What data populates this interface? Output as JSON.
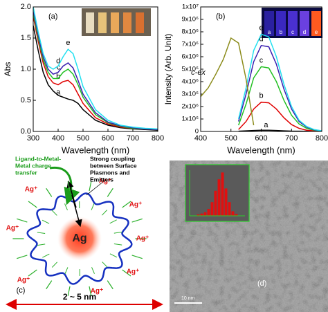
{
  "chart_data": [
    {
      "type": "line",
      "panel_label": "(a)",
      "xlabel": "Wavelength (nm)",
      "ylabel": "Abs",
      "x": [
        300,
        320,
        340,
        360,
        380,
        400,
        420,
        440,
        460,
        480,
        500,
        550,
        600,
        650,
        700,
        750,
        800
      ],
      "xlim": [
        300,
        800
      ],
      "xticks": [
        300,
        400,
        500,
        600,
        700,
        800
      ],
      "ylim": [
        0,
        2
      ],
      "yticks": [
        {
          "value": 0,
          "label": "0.0"
        },
        0.5,
        {
          "value": 1,
          "label": "1.0"
        },
        1.5,
        {
          "value": 2,
          "label": "2.0"
        }
      ],
      "series": [
        {
          "name": "a",
          "color": "#000000",
          "values": [
            1.7,
            1.3,
            0.95,
            0.75,
            0.65,
            0.58,
            0.55,
            0.52,
            0.5,
            0.45,
            0.35,
            0.18,
            0.1,
            0.06,
            0.04,
            0.03,
            0.02
          ]
        },
        {
          "name": "b",
          "color": "#e00000",
          "values": [
            1.85,
            1.45,
            1.1,
            0.88,
            0.78,
            0.75,
            0.8,
            0.82,
            0.75,
            0.6,
            0.45,
            0.22,
            0.12,
            0.07,
            0.05,
            0.04,
            0.03
          ]
        },
        {
          "name": "c",
          "color": "#22c022",
          "values": [
            1.9,
            1.5,
            1.15,
            0.95,
            0.85,
            0.85,
            0.95,
            1.0,
            0.92,
            0.75,
            0.55,
            0.27,
            0.14,
            0.08,
            0.05,
            0.04,
            0.03
          ]
        },
        {
          "name": "d",
          "color": "#3a1fb0",
          "values": [
            1.95,
            1.55,
            1.2,
            1.0,
            0.92,
            0.95,
            1.05,
            1.1,
            1.02,
            0.82,
            0.6,
            0.3,
            0.15,
            0.09,
            0.06,
            0.04,
            0.03
          ]
        },
        {
          "name": "e",
          "color": "#22e0f0",
          "values": [
            2.0,
            1.6,
            1.25,
            1.05,
            1.0,
            1.05,
            1.2,
            1.32,
            1.25,
            1.0,
            0.72,
            0.35,
            0.18,
            0.1,
            0.07,
            0.05,
            0.04
          ]
        }
      ]
    },
    {
      "type": "line",
      "panel_label": "(b)",
      "xlabel": "Wavelength (nm)",
      "ylabel": "Intensity (Arb. Unit)",
      "x": [
        400,
        425,
        450,
        475,
        500,
        525,
        550,
        575,
        600,
        625,
        650,
        675,
        700,
        725,
        750,
        775,
        800
      ],
      "xlim": [
        400,
        800
      ],
      "xticks": [
        400,
        500,
        600,
        700,
        800
      ],
      "ylim": [
        0,
        10000000
      ],
      "yticks": [
        0,
        {
          "value": 1000000,
          "label": "1x10⁶"
        },
        {
          "value": 2000000,
          "label": "2x10⁶"
        },
        {
          "value": 3000000,
          "label": "3x10⁶"
        },
        {
          "value": 4000000,
          "label": "4x10⁶"
        },
        {
          "value": 5000000,
          "label": "5x10⁶"
        },
        {
          "value": 6000000,
          "label": "6x10⁶"
        },
        {
          "value": 7000000,
          "label": "7x10⁶"
        },
        {
          "value": 8000000,
          "label": "8x10⁶"
        },
        {
          "value": 9000000,
          "label": "9x10⁶"
        },
        {
          "value": 10000000,
          "label": "1x10⁷"
        }
      ],
      "series": [
        {
          "name": "a",
          "color": "#000000",
          "values": [
            null,
            null,
            null,
            null,
            null,
            20000,
            50000,
            80000,
            100000,
            100000,
            80000,
            50000,
            30000,
            20000,
            10000,
            10000,
            10000
          ]
        },
        {
          "name": "b",
          "color": "#e00000",
          "values": [
            null,
            null,
            null,
            null,
            null,
            150000,
            800000,
            1800000,
            2350000,
            2300000,
            1800000,
            1100000,
            550000,
            250000,
            100000,
            50000,
            20000
          ]
        },
        {
          "name": "c",
          "color": "#22c022",
          "values": [
            null,
            null,
            null,
            null,
            null,
            500000,
            2200000,
            4300000,
            5200000,
            5100000,
            4000000,
            2500000,
            1300000,
            600000,
            250000,
            100000,
            40000
          ]
        },
        {
          "name": "d",
          "color": "#3a1fb0",
          "values": [
            null,
            null,
            null,
            null,
            null,
            800000,
            3000000,
            5600000,
            6900000,
            6800000,
            5400000,
            3400000,
            1800000,
            800000,
            350000,
            120000,
            50000
          ]
        },
        {
          "name": "e",
          "color": "#22e0f0",
          "values": [
            null,
            null,
            null,
            null,
            null,
            1000000,
            3500000,
            6500000,
            7800000,
            7600000,
            6000000,
            3800000,
            2000000,
            900000,
            400000,
            150000,
            50000
          ]
        },
        {
          "name": "c-ex",
          "color": "#8b8b1a",
          "values": [
            2800000,
            3500000,
            4600000,
            5800000,
            7500000,
            7100000,
            4200000,
            500000,
            null,
            null,
            null,
            null,
            null,
            null,
            null,
            null,
            null
          ]
        }
      ]
    },
    {
      "type": "histogram",
      "color": "#e01010",
      "bins": [
        1,
        1.25,
        1.5,
        1.75,
        2,
        2.25,
        2.5,
        2.75,
        3,
        3.25,
        3.5,
        3.75,
        4
      ],
      "values": [
        3,
        5,
        8,
        15,
        30,
        55,
        80,
        95,
        60,
        30,
        10,
        4
      ],
      "xlim": [
        0.5,
        4.5
      ],
      "ylim": [
        0,
        100
      ]
    }
  ],
  "diagram": {
    "panel_label": "(c)",
    "center": "Ag",
    "ions": [
      "Ag⁺",
      "Ag⁺",
      "Ag⁺",
      "Ag⁺",
      "Ag⁺",
      "Ag⁺",
      "Ag⁺",
      "Ag⁺"
    ],
    "lmmct": [
      "Ligand-to-Metal-",
      "Metal charge",
      "transfer"
    ],
    "coupling": [
      "Strong coupling",
      "between Surface",
      "Plasmons and",
      "Emitters"
    ],
    "size": "2 ~ 5 nm"
  },
  "image": {
    "panel_label": "(d)",
    "scale": "10 nm"
  }
}
